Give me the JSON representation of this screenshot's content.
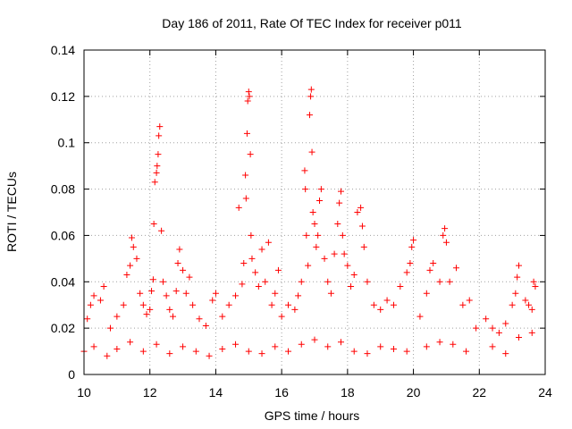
{
  "chart_data": {
    "type": "scatter",
    "title": "Day 186 of 2011, Rate Of TEC Index for receiver p011",
    "xlabel": "GPS time / hours",
    "ylabel": "ROTI / TECUs",
    "xlim": [
      10,
      24
    ],
    "ylim": [
      0,
      0.14
    ],
    "xticks": [
      "10",
      "12",
      "14",
      "16",
      "18",
      "20",
      "22",
      "24"
    ],
    "yticks": [
      "0",
      "0.02",
      "0.04",
      "0.06",
      "0.08",
      "0.1",
      "0.12",
      "0.14"
    ],
    "grid": true,
    "marker": "+",
    "color": "#ff0000",
    "series": [
      {
        "values": [
          [
            10.1,
            0.024
          ],
          [
            10.2,
            0.03
          ],
          [
            10.3,
            0.034
          ],
          [
            10.5,
            0.032
          ],
          [
            10.6,
            0.038
          ],
          [
            10.8,
            0.02
          ],
          [
            11.0,
            0.025
          ],
          [
            11.2,
            0.03
          ],
          [
            11.3,
            0.043
          ],
          [
            11.4,
            0.047
          ],
          [
            11.45,
            0.059
          ],
          [
            11.5,
            0.055
          ],
          [
            11.6,
            0.05
          ],
          [
            11.7,
            0.035
          ],
          [
            11.8,
            0.03
          ],
          [
            11.9,
            0.026
          ],
          [
            12.0,
            0.028
          ],
          [
            12.05,
            0.036
          ],
          [
            12.1,
            0.041
          ],
          [
            12.12,
            0.065
          ],
          [
            12.15,
            0.083
          ],
          [
            12.2,
            0.087
          ],
          [
            12.22,
            0.09
          ],
          [
            12.25,
            0.095
          ],
          [
            12.27,
            0.103
          ],
          [
            12.3,
            0.107
          ],
          [
            12.35,
            0.062
          ],
          [
            12.4,
            0.04
          ],
          [
            12.5,
            0.034
          ],
          [
            12.6,
            0.028
          ],
          [
            12.7,
            0.025
          ],
          [
            12.8,
            0.036
          ],
          [
            12.85,
            0.048
          ],
          [
            12.9,
            0.054
          ],
          [
            13.0,
            0.045
          ],
          [
            13.1,
            0.035
          ],
          [
            13.2,
            0.042
          ],
          [
            13.3,
            0.03
          ],
          [
            13.5,
            0.024
          ],
          [
            13.7,
            0.021
          ],
          [
            13.9,
            0.032
          ],
          [
            14.0,
            0.035
          ],
          [
            14.2,
            0.025
          ],
          [
            14.4,
            0.03
          ],
          [
            14.6,
            0.034
          ],
          [
            14.7,
            0.072
          ],
          [
            14.8,
            0.039
          ],
          [
            14.85,
            0.048
          ],
          [
            14.9,
            0.086
          ],
          [
            14.92,
            0.076
          ],
          [
            14.95,
            0.104
          ],
          [
            14.97,
            0.118
          ],
          [
            15.0,
            0.122
          ],
          [
            15.02,
            0.12
          ],
          [
            15.05,
            0.095
          ],
          [
            15.07,
            0.06
          ],
          [
            15.1,
            0.05
          ],
          [
            15.2,
            0.044
          ],
          [
            15.3,
            0.038
          ],
          [
            15.4,
            0.054
          ],
          [
            15.5,
            0.04
          ],
          [
            15.6,
            0.057
          ],
          [
            15.7,
            0.03
          ],
          [
            15.8,
            0.035
          ],
          [
            15.9,
            0.045
          ],
          [
            16.0,
            0.025
          ],
          [
            16.2,
            0.03
          ],
          [
            16.4,
            0.028
          ],
          [
            16.5,
            0.034
          ],
          [
            16.6,
            0.04
          ],
          [
            16.7,
            0.088
          ],
          [
            16.72,
            0.08
          ],
          [
            16.75,
            0.06
          ],
          [
            16.8,
            0.047
          ],
          [
            16.85,
            0.112
          ],
          [
            16.88,
            0.12
          ],
          [
            16.9,
            0.123
          ],
          [
            16.92,
            0.096
          ],
          [
            16.95,
            0.07
          ],
          [
            17.0,
            0.065
          ],
          [
            17.05,
            0.055
          ],
          [
            17.1,
            0.06
          ],
          [
            17.15,
            0.075
          ],
          [
            17.2,
            0.08
          ],
          [
            17.3,
            0.05
          ],
          [
            17.4,
            0.04
          ],
          [
            17.5,
            0.035
          ],
          [
            17.6,
            0.052
          ],
          [
            17.7,
            0.065
          ],
          [
            17.75,
            0.074
          ],
          [
            17.8,
            0.079
          ],
          [
            17.85,
            0.06
          ],
          [
            17.9,
            0.052
          ],
          [
            18.0,
            0.047
          ],
          [
            18.1,
            0.038
          ],
          [
            18.2,
            0.043
          ],
          [
            18.3,
            0.07
          ],
          [
            18.4,
            0.072
          ],
          [
            18.45,
            0.064
          ],
          [
            18.5,
            0.055
          ],
          [
            18.6,
            0.04
          ],
          [
            18.8,
            0.03
          ],
          [
            19.0,
            0.028
          ],
          [
            19.2,
            0.032
          ],
          [
            19.4,
            0.03
          ],
          [
            19.6,
            0.038
          ],
          [
            19.8,
            0.044
          ],
          [
            19.9,
            0.048
          ],
          [
            19.95,
            0.055
          ],
          [
            20.0,
            0.058
          ],
          [
            20.2,
            0.025
          ],
          [
            20.4,
            0.035
          ],
          [
            20.5,
            0.045
          ],
          [
            20.6,
            0.048
          ],
          [
            20.8,
            0.04
          ],
          [
            20.9,
            0.06
          ],
          [
            20.95,
            0.063
          ],
          [
            21.0,
            0.057
          ],
          [
            21.1,
            0.04
          ],
          [
            21.3,
            0.046
          ],
          [
            21.5,
            0.03
          ],
          [
            21.7,
            0.032
          ],
          [
            21.9,
            0.02
          ],
          [
            22.2,
            0.024
          ],
          [
            22.4,
            0.02
          ],
          [
            22.6,
            0.018
          ],
          [
            22.8,
            0.022
          ],
          [
            23.0,
            0.03
          ],
          [
            23.1,
            0.035
          ],
          [
            23.15,
            0.042
          ],
          [
            23.2,
            0.047
          ],
          [
            23.4,
            0.032
          ],
          [
            23.5,
            0.03
          ],
          [
            23.6,
            0.028
          ],
          [
            23.65,
            0.04
          ],
          [
            23.7,
            0.038
          ],
          [
            10.0,
            0.01
          ],
          [
            10.3,
            0.012
          ],
          [
            10.7,
            0.008
          ],
          [
            11.0,
            0.011
          ],
          [
            11.4,
            0.014
          ],
          [
            11.8,
            0.01
          ],
          [
            12.2,
            0.013
          ],
          [
            12.6,
            0.009
          ],
          [
            13.0,
            0.012
          ],
          [
            13.4,
            0.01
          ],
          [
            13.8,
            0.008
          ],
          [
            14.2,
            0.011
          ],
          [
            14.6,
            0.013
          ],
          [
            15.0,
            0.01
          ],
          [
            15.4,
            0.009
          ],
          [
            15.8,
            0.012
          ],
          [
            16.2,
            0.01
          ],
          [
            16.6,
            0.013
          ],
          [
            17.0,
            0.015
          ],
          [
            17.4,
            0.012
          ],
          [
            17.8,
            0.014
          ],
          [
            18.2,
            0.01
          ],
          [
            18.6,
            0.009
          ],
          [
            19.0,
            0.012
          ],
          [
            19.4,
            0.011
          ],
          [
            19.8,
            0.01
          ],
          [
            20.4,
            0.012
          ],
          [
            20.8,
            0.014
          ],
          [
            21.2,
            0.013
          ],
          [
            21.6,
            0.01
          ],
          [
            22.4,
            0.012
          ],
          [
            22.8,
            0.009
          ],
          [
            23.2,
            0.016
          ],
          [
            23.6,
            0.018
          ]
        ]
      }
    ]
  }
}
